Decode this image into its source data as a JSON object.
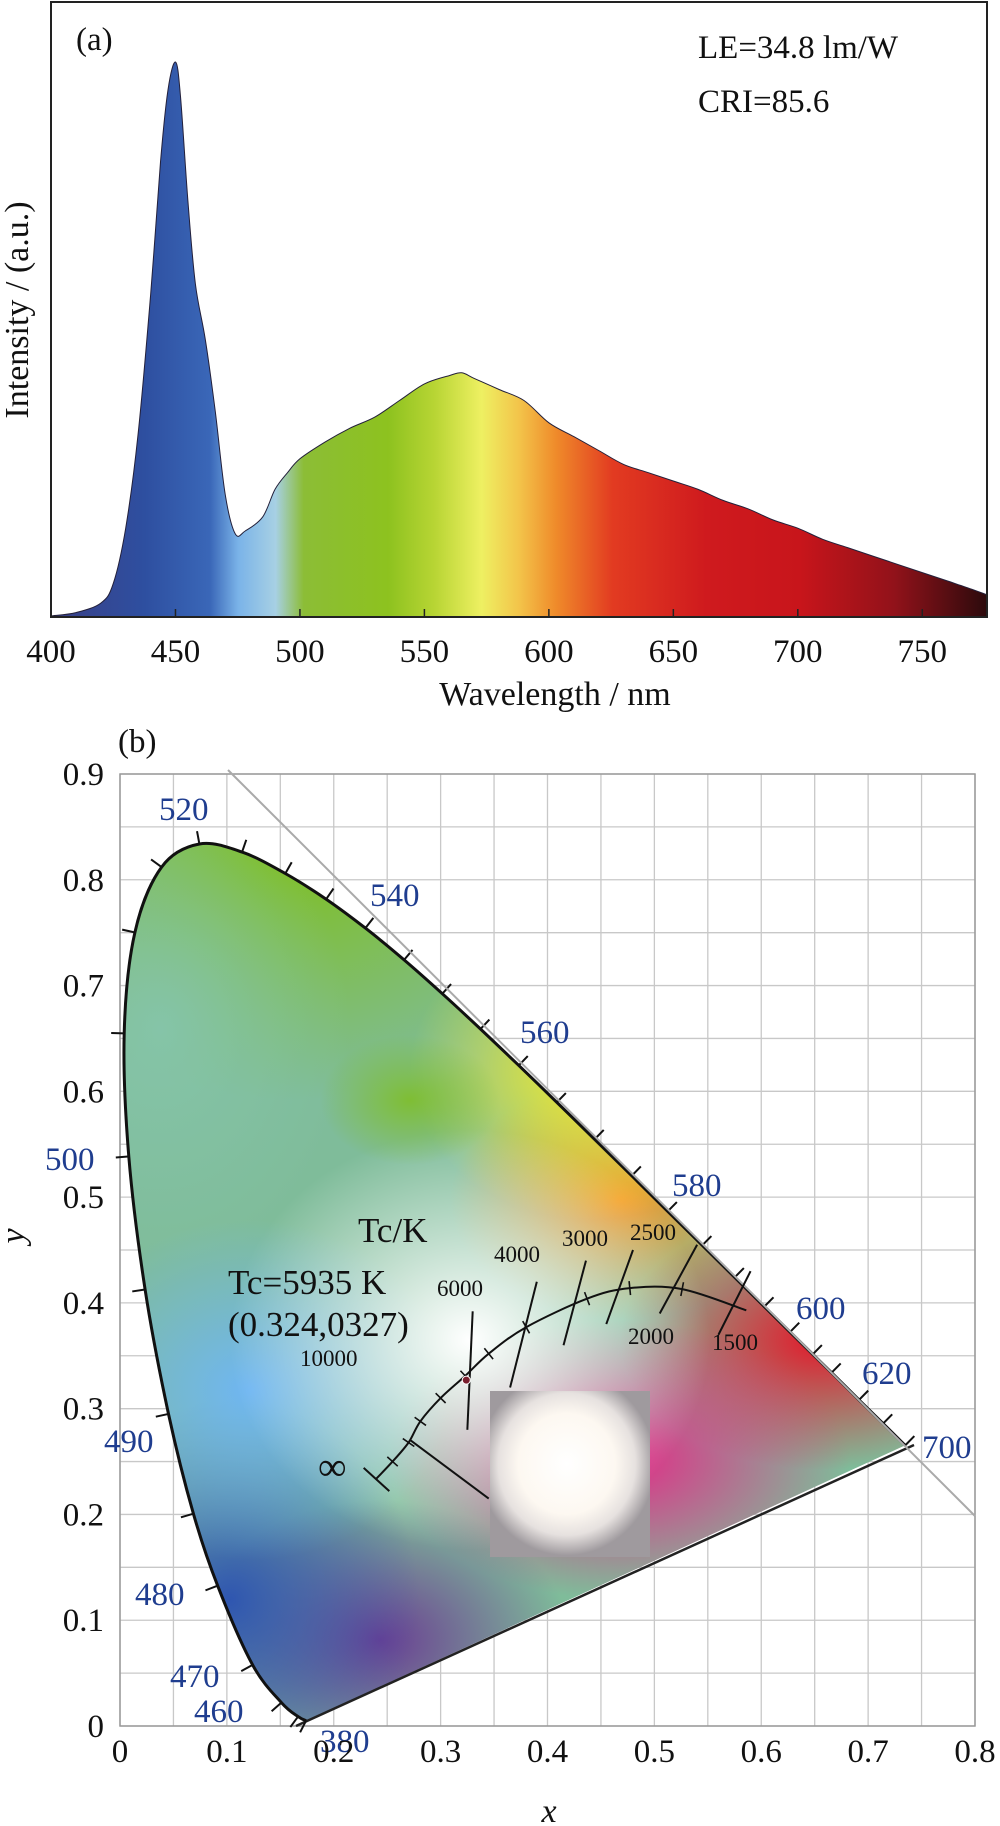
{
  "chart_data": [
    {
      "panel_label": "(a)",
      "type": "area",
      "xlabel": "Wavelength / nm",
      "ylabel": "Intensity / (a.u.)",
      "xlim": [
        400,
        776
      ],
      "ylim": [
        0,
        1.0
      ],
      "x_ticks": [
        "400",
        "450",
        "500",
        "550",
        "600",
        "650",
        "700",
        "750"
      ],
      "annotations": [
        "LE=34.8 lm/W",
        "CRI=85.6"
      ],
      "series": [
        {
          "x": [
            400,
            410,
            420,
            425,
            430,
            435,
            440,
            444,
            447,
            450,
            452,
            455,
            458,
            462,
            466,
            470,
            474,
            478,
            485,
            490,
            495,
            500,
            510,
            520,
            530,
            540,
            550,
            560,
            565,
            570,
            580,
            590,
            600,
            610,
            620,
            630,
            640,
            650,
            660,
            670,
            680,
            690,
            700,
            710,
            720,
            730,
            740,
            750,
            760,
            770,
            776
          ],
          "values": [
            0.002,
            0.008,
            0.025,
            0.06,
            0.16,
            0.33,
            0.58,
            0.82,
            0.95,
            1.0,
            0.94,
            0.75,
            0.6,
            0.5,
            0.37,
            0.22,
            0.15,
            0.155,
            0.18,
            0.23,
            0.26,
            0.285,
            0.315,
            0.34,
            0.36,
            0.39,
            0.42,
            0.435,
            0.44,
            0.43,
            0.41,
            0.39,
            0.35,
            0.325,
            0.3,
            0.275,
            0.26,
            0.245,
            0.23,
            0.21,
            0.195,
            0.175,
            0.16,
            0.14,
            0.125,
            0.11,
            0.095,
            0.08,
            0.065,
            0.05,
            0.04
          ]
        }
      ]
    },
    {
      "panel_label": "(b)",
      "type": "scatter",
      "xlabel": "x",
      "ylabel": "y",
      "xlim": [
        0,
        0.8
      ],
      "ylim": [
        0,
        0.9
      ],
      "x_ticks": [
        "0",
        "0.1",
        "0.2",
        "0.3",
        "0.4",
        "0.5",
        "0.6",
        "0.7",
        "0.8"
      ],
      "y_ticks": [
        "0",
        "0.1",
        "0.2",
        "0.3",
        "0.4",
        "0.5",
        "0.6",
        "0.7",
        "0.8",
        "0.9"
      ],
      "grid": true,
      "wavelength_labels": [
        "380",
        "460",
        "470",
        "480",
        "490",
        "500",
        "520",
        "540",
        "560",
        "580",
        "600",
        "620",
        "700"
      ],
      "locus_x": [
        0.1741,
        0.1666,
        0.151,
        0.1241,
        0.0913,
        0.0687,
        0.0454,
        0.0235,
        0.0082,
        0.0039,
        0.0139,
        0.0389,
        0.0743,
        0.1142,
        0.1547,
        0.1929,
        0.2296,
        0.2658,
        0.3016,
        0.3373,
        0.3731,
        0.4087,
        0.4441,
        0.4788,
        0.5125,
        0.5448,
        0.5752,
        0.6029,
        0.627,
        0.6482,
        0.6658,
        0.6915,
        0.714,
        0.7347
      ],
      "locus_y": [
        0.005,
        0.0089,
        0.0221,
        0.0578,
        0.1327,
        0.2007,
        0.295,
        0.4127,
        0.5384,
        0.6548,
        0.7502,
        0.812,
        0.8338,
        0.8262,
        0.8059,
        0.7816,
        0.7543,
        0.7243,
        0.6923,
        0.6589,
        0.6245,
        0.5896,
        0.5547,
        0.5202,
        0.4866,
        0.4544,
        0.4242,
        0.3965,
        0.3725,
        0.3514,
        0.334,
        0.3083,
        0.2859,
        0.2653
      ],
      "planckian_x": [
        0.24,
        0.255,
        0.27,
        0.281,
        0.3,
        0.323,
        0.345,
        0.38,
        0.437,
        0.477,
        0.526,
        0.586
      ],
      "planckian_y": [
        0.234,
        0.25,
        0.268,
        0.288,
        0.31,
        0.331,
        0.352,
        0.377,
        0.404,
        0.414,
        0.413,
        0.393
      ],
      "cct_labels": [
        "10000",
        "6000",
        "4000",
        "3000",
        "2500",
        "2000",
        "1500"
      ],
      "infinity_label": "∞",
      "tc_axis_label": "Tc/K",
      "point": {
        "x": 0.324,
        "y": 0.327,
        "label_line1": "Tc=5935 K",
        "label_line2": "(0.324,0327)"
      }
    }
  ]
}
